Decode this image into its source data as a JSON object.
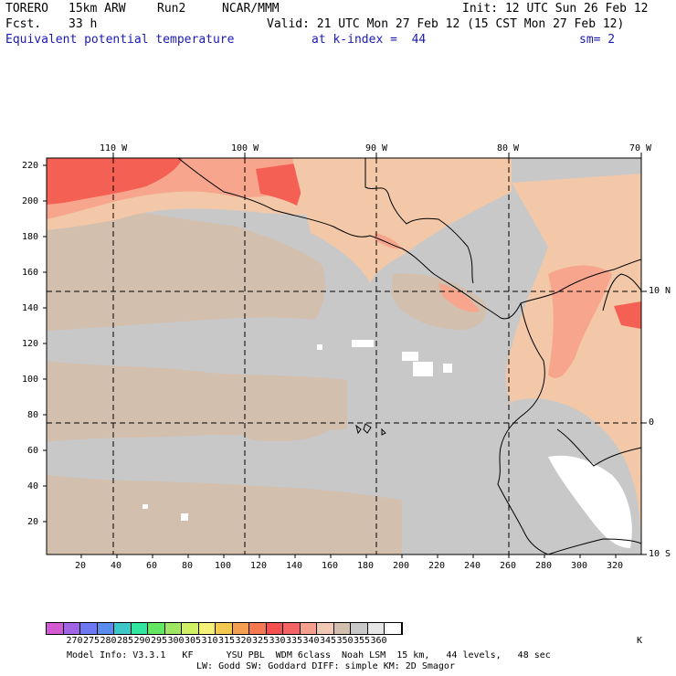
{
  "header": {
    "model_name": "TORERO",
    "resolution": "15km ARW",
    "run": "Run2",
    "org": "NCAR/MMM",
    "init": "Init: 12 UTC Sun 26 Feb 12",
    "fcst_label": "Fcst.",
    "fcst_value": "33 h",
    "valid": "Valid: 21 UTC Mon 27 Feb 12 (15 CST Mon 27 Feb 12)",
    "field_name": "Equivalent potential temperature",
    "level": "at k-index =  44",
    "smoothing": "sm= 2"
  },
  "map": {
    "top_lon_labels": [
      "110 W",
      "100 W",
      "90 W",
      "80 W",
      "70 W"
    ],
    "right_lat_labels": [
      "10 N",
      "0",
      "10 S"
    ],
    "y_ticks": [
      "220",
      "200",
      "180",
      "160",
      "140",
      "120",
      "100",
      "80",
      "60",
      "40",
      "20"
    ],
    "x_ticks": [
      "20",
      "40",
      "60",
      "80",
      "100",
      "120",
      "140",
      "160",
      "180",
      "200",
      "220",
      "240",
      "260",
      "280",
      "300",
      "320"
    ],
    "colors": {
      "cool": "#d2bfae",
      "grey": "#c8c8c8",
      "warm1": "#f2c8a8",
      "warm2": "#f7a58c",
      "warm3": "#f56055",
      "white": "#ffffff",
      "border": "#000000"
    }
  },
  "colorbar": {
    "colors": [
      "#d25ad2",
      "#a064e6",
      "#6e78f0",
      "#5a8cf0",
      "#3cc8c8",
      "#32e6a0",
      "#64e664",
      "#a0e664",
      "#d2f064",
      "#f5f078",
      "#f5c850",
      "#f5a050",
      "#f57850",
      "#f55050",
      "#f56464",
      "#f5a08c",
      "#f0c8b4",
      "#d2bfae",
      "#c8c8c8",
      "#e6e6e6",
      "#ffffff"
    ],
    "labels": [
      "270",
      "275",
      "280",
      "285",
      "290",
      "295",
      "300",
      "305",
      "310",
      "315",
      "320",
      "325",
      "330",
      "335",
      "340",
      "345",
      "350",
      "355",
      "360"
    ],
    "unit": "K"
  },
  "footer": {
    "line1": "Model Info: V3.3.1   KF      YSU PBL  WDM 6class  Noah LSM  15 km,   44 levels,   48 sec",
    "line2": "LW: Godd SW: Goddard DIFF: simple KM: 2D Smagor"
  }
}
